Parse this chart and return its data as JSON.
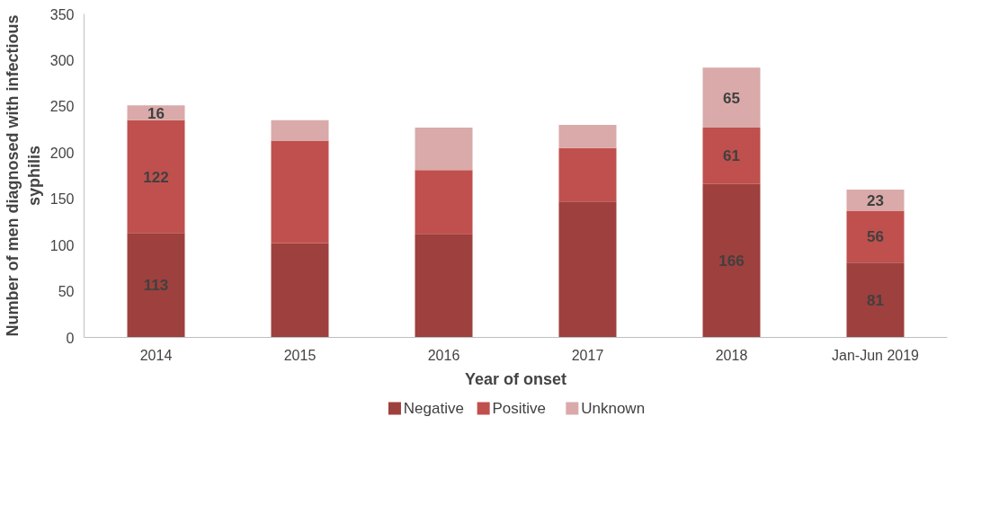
{
  "chart_data": {
    "type": "bar",
    "stacked": true,
    "xlabel": "Year of onset",
    "ylabel": "Number of men diagnosed with infectious syphilis",
    "categories": [
      "2014",
      "2015",
      "2016",
      "2017",
      "2018",
      "Jan-Jun 2019"
    ],
    "series": [
      {
        "name": "Negative",
        "color": "#9e403d",
        "values": [
          113,
          102,
          112,
          147,
          166,
          81
        ],
        "value_labels": [
          "113",
          null,
          null,
          null,
          "166",
          "81"
        ]
      },
      {
        "name": "Positive",
        "color": "#c0504d",
        "values": [
          122,
          111,
          69,
          58,
          61,
          56
        ],
        "value_labels": [
          "122",
          null,
          null,
          null,
          "61",
          "56"
        ]
      },
      {
        "name": "Unknown",
        "color": "#d9aaa9",
        "values": [
          16,
          22,
          46,
          25,
          65,
          23
        ],
        "value_labels": [
          "16",
          null,
          null,
          null,
          "65",
          "23"
        ]
      }
    ],
    "ylim": [
      0,
      350
    ],
    "yticks": [
      0,
      50,
      100,
      150,
      200,
      250,
      300,
      350
    ],
    "grid": false,
    "legend": "bottom"
  }
}
